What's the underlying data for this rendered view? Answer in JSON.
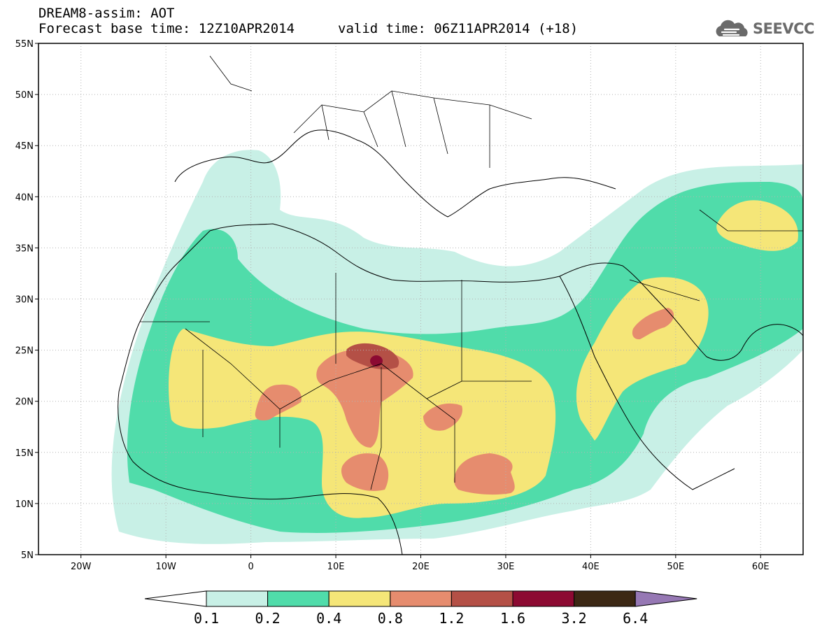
{
  "header": {
    "title_line1": "DREAM8-assim: AOT",
    "title_line2": "Forecast base time: 12Z10APR2014",
    "valid_time": "valid time: 06Z11APR2014 (+18)",
    "logo_text": "SEEVCCC",
    "logo_icon": "cloud-icon"
  },
  "map": {
    "lon_range": [
      -25,
      65
    ],
    "lat_range": [
      5,
      55
    ],
    "lat_labels": [
      "5N",
      "10N",
      "15N",
      "20N",
      "25N",
      "30N",
      "35N",
      "40N",
      "45N",
      "50N",
      "55N"
    ],
    "lon_labels": [
      "20W",
      "10W",
      "0",
      "10E",
      "20E",
      "30E",
      "40E",
      "50E",
      "60E"
    ],
    "grid": true
  },
  "colorbar": {
    "labels": [
      "0.1",
      "0.2",
      "0.4",
      "0.8",
      "1.2",
      "1.6",
      "3.2",
      "6.4"
    ],
    "colors": [
      "#ffffff",
      "#c8f0e6",
      "#50dcaa",
      "#f5e678",
      "#e68c6e",
      "#b45046",
      "#8c0a32",
      "#3c2814",
      "#9678b4"
    ],
    "levels": [
      0.1,
      0.2,
      0.4,
      0.8,
      1.2,
      1.6,
      3.2,
      6.4
    ]
  }
}
